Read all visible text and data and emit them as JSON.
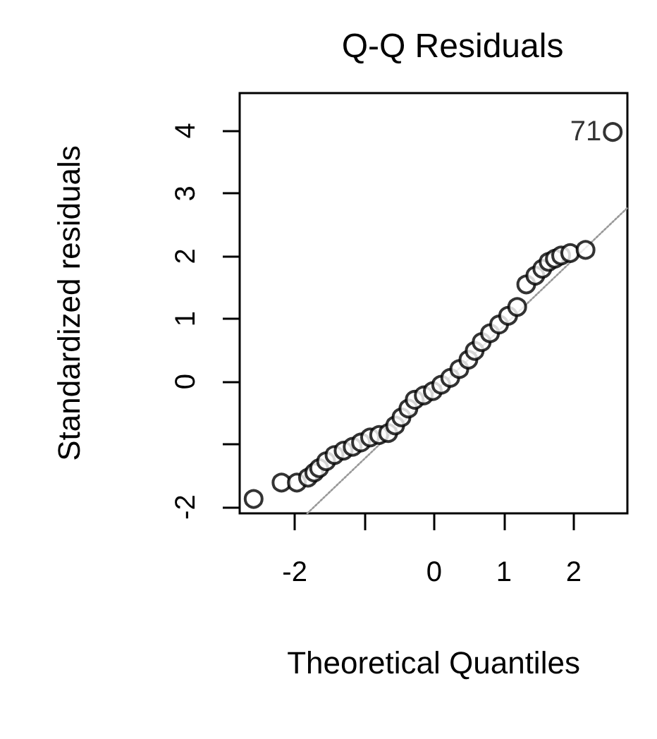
{
  "chart_data": {
    "type": "scatter",
    "title": "Q-Q Residuals",
    "xlabel": "Theoretical Quantiles",
    "ylabel": "Standardized residuals",
    "xlim": [
      -2.79,
      2.77
    ],
    "ylim": [
      -2.1,
      4.6
    ],
    "xticks": [
      -2,
      {
        "value": -1,
        "label": null
      },
      0,
      1,
      2
    ],
    "yticks": [
      -2,
      {
        "value": -1,
        "label": null
      },
      0,
      1,
      2,
      3,
      4
    ],
    "grid": false,
    "marker": "circle",
    "annotations": [
      {
        "text": "71",
        "x": 2.56,
        "y": 3.98
      }
    ],
    "series": [
      {
        "color": "#000000",
        "x": [
          -2.59,
          -2.19,
          -1.97,
          -1.81,
          -1.72,
          -1.65,
          -1.55,
          -1.43,
          -1.3,
          -1.17,
          -1.05,
          -0.92,
          -0.79,
          -0.66,
          -0.56,
          -0.47,
          -0.37,
          -0.28,
          -0.15,
          -0.02,
          0.1,
          0.23,
          0.36,
          0.49,
          0.58,
          0.68,
          0.8,
          0.93,
          1.06,
          1.19,
          1.32,
          1.45,
          1.55,
          1.64,
          1.73,
          1.82,
          1.95,
          2.17,
          2.56
        ],
        "values": [
          -1.87,
          -1.61,
          -1.61,
          -1.53,
          -1.45,
          -1.38,
          -1.27,
          -1.17,
          -1.1,
          -1.04,
          -0.97,
          -0.89,
          -0.85,
          -0.82,
          -0.7,
          -0.57,
          -0.43,
          -0.29,
          -0.22,
          -0.15,
          -0.05,
          0.06,
          0.2,
          0.35,
          0.49,
          0.63,
          0.77,
          0.91,
          1.05,
          1.19,
          1.55,
          1.69,
          1.8,
          1.91,
          1.96,
          2.01,
          2.05,
          2.1,
          3.98
        ]
      },
      {
        "type": "line",
        "color": "#999999",
        "line_style": "dotted",
        "marker": "none",
        "x": [
          -1.82,
          2.77
        ],
        "values": [
          -2.1,
          2.77
        ]
      }
    ]
  }
}
